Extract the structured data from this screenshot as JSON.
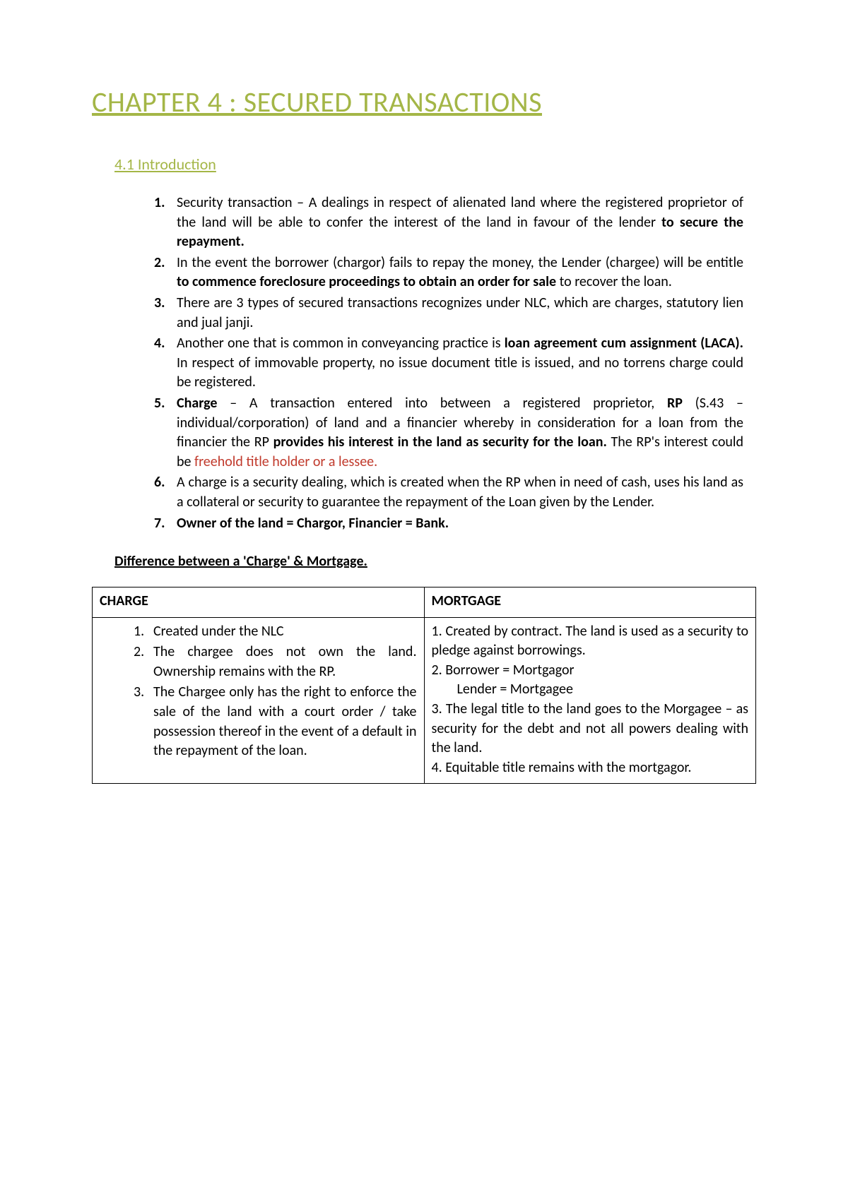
{
  "colors": {
    "accent": "#a4b647",
    "text": "#000000",
    "red": "#c0392b",
    "background": "#ffffff",
    "border": "#000000"
  },
  "typography": {
    "chapter_title_size": 40,
    "section_title_size": 22,
    "body_size": 20,
    "line_height": 1.38,
    "font_family": "Calibri"
  },
  "chapter_title": "CHAPTER 4 : SECURED TRANSACTIONS",
  "section_title": "4.1 Introduction",
  "list": [
    {
      "num": "1.",
      "html": "Security transaction – A dealings in respect of alienated land where the registered proprietor of the land will be able to confer the interest of the land in favour of the lender <span class=\"bold\">to secure the repayment.</span>"
    },
    {
      "num": "2.",
      "html": "In the event the borrower (chargor) fails to repay the money, the Lender (chargee) will be entitle <span class=\"bold\">to commence foreclosure proceedings to obtain an order for sale</span> to recover the loan."
    },
    {
      "num": "3.",
      "html": "There are 3 types of secured transactions recognizes under NLC, which are charges, statutory lien and jual janji."
    },
    {
      "num": "4.",
      "html": "Another one that is common in conveyancing practice is <span class=\"bold\">loan agreement cum assignment (LACA).</span> In respect of immovable property, no issue document title is issued, and no torrens charge could be registered."
    },
    {
      "num": "5.",
      "html": "<span class=\"bold\">Charge</span> – A transaction entered into between a registered proprietor, <span class=\"bold\">RP</span> (S.43 – individual/corporation) of land and a financier whereby in consideration for a loan from the financier the RP <span class=\"bold\">provides his interest in the land as security for the loan.</span> The RP's interest could be <span class=\"red\">freehold title holder or a lessee.</span>"
    },
    {
      "num": "6.",
      "html": "A charge is a security dealing, which is created when the RP when in need of cash, uses his land as a collateral or security to guarantee the repayment of the Loan given by the Lender."
    },
    {
      "num": "7.",
      "html": "<span class=\"bold\">Owner of the land = Chargor, Financier = Bank.</span>"
    }
  ],
  "subsection_title": "Difference between a 'Charge' & Mortgage.",
  "table": {
    "headers": {
      "left": "CHARGE",
      "right": "MORTGAGE"
    },
    "left_items": [
      {
        "n": "1.",
        "text": "Created under the NLC"
      },
      {
        "n": "2.",
        "text": "The chargee does not own the land. Ownership remains with the RP."
      },
      {
        "n": "3.",
        "text": "The Chargee only has the right to enforce the sale of the land with a court order / take possession thereof in the event of a default in the repayment of the loan."
      }
    ],
    "right_html": "1. Created by contract. The land is used as a security to pledge against borrowings.<br>2. Borrower = Mortgagor<br><span class=\"indent\">Lender = Mortgagee</span>3. The legal title to the land goes to the Morgagee – as security for the debt and not all powers dealing with the land.<br>4. Equitable title remains with the mortgagor."
  }
}
